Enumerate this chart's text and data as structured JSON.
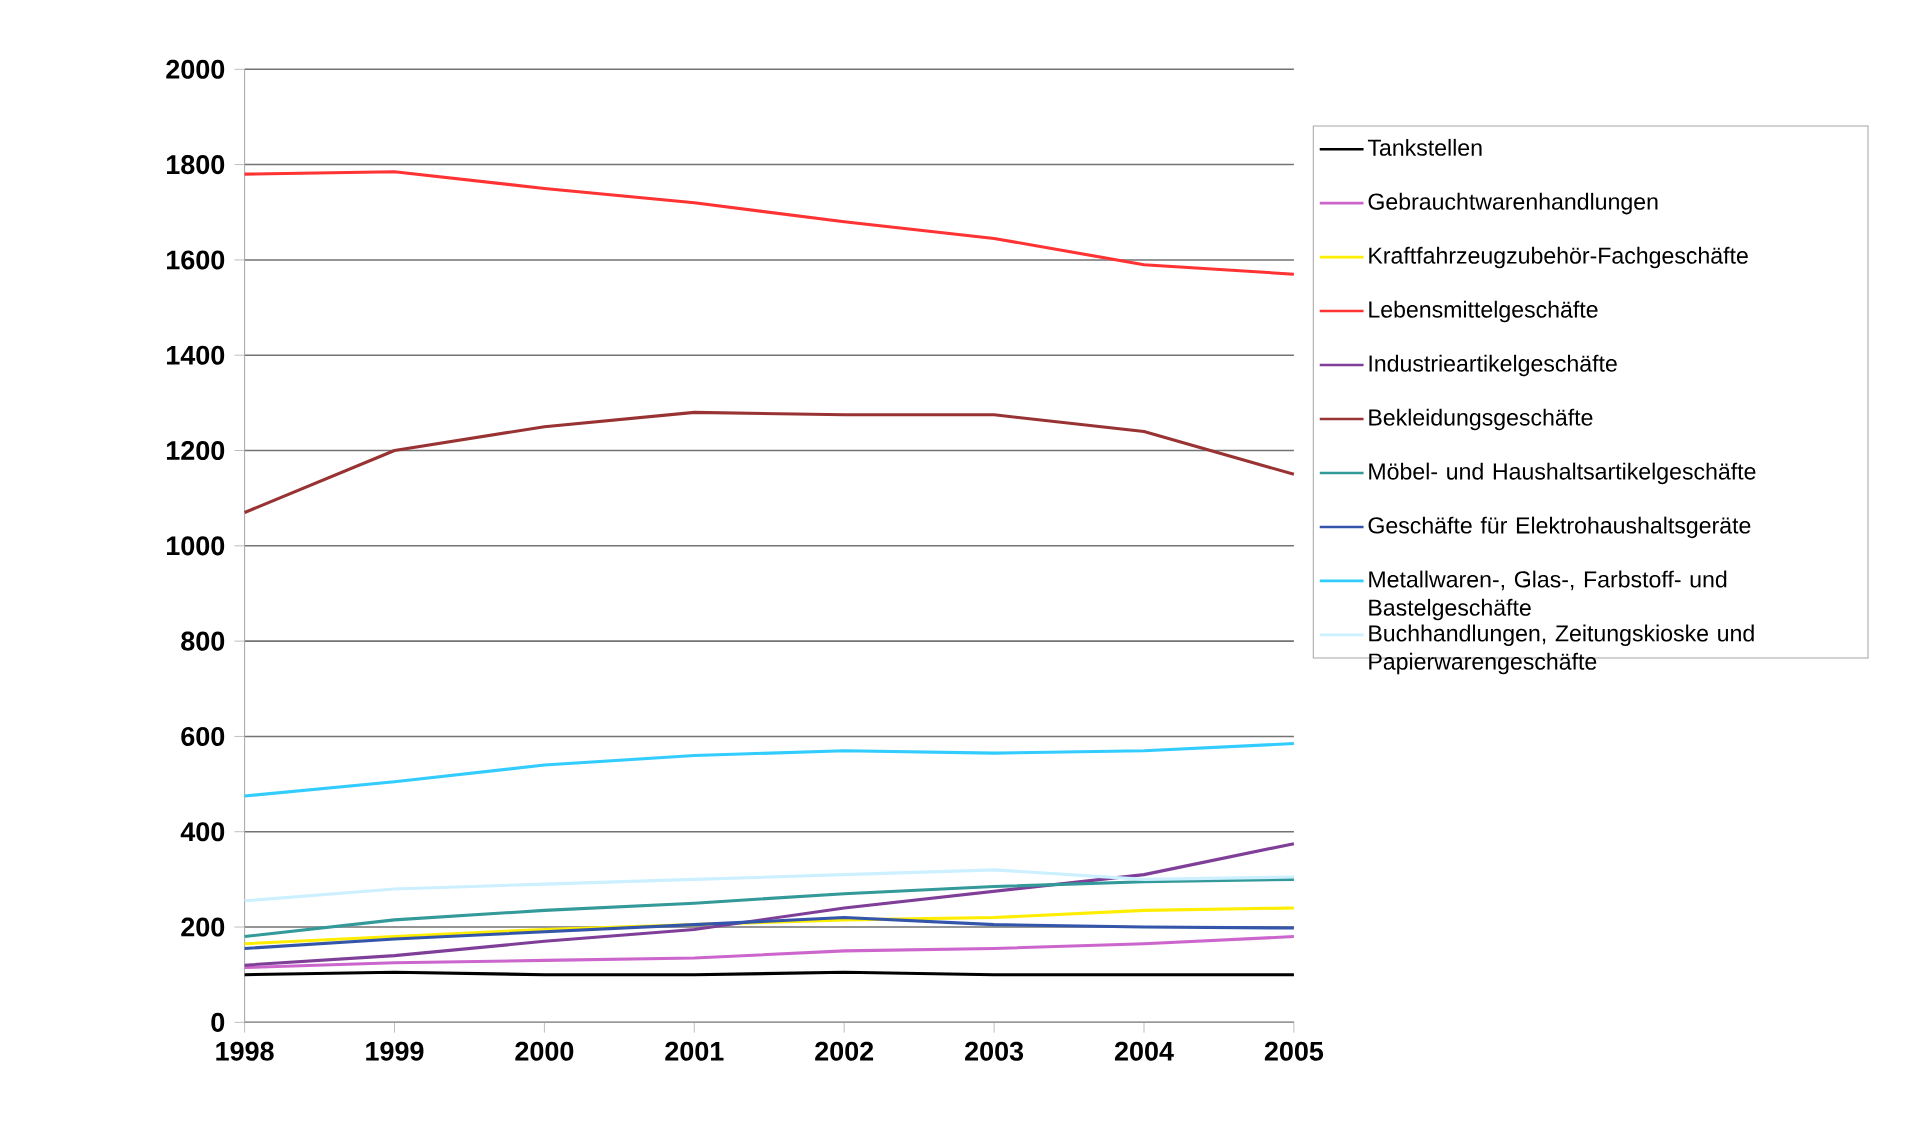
{
  "chart_data": {
    "type": "line",
    "x": [
      1998,
      1999,
      2000,
      2001,
      2002,
      2003,
      2004,
      2005
    ],
    "series": [
      {
        "name": "Tankstellen",
        "color": "#000000",
        "values": [
          100,
          105,
          100,
          100,
          105,
          100,
          100,
          100
        ]
      },
      {
        "name": "Gebrauchtwarenhandlungen",
        "color": "#cc66cc",
        "values": [
          115,
          125,
          130,
          135,
          150,
          155,
          165,
          180
        ]
      },
      {
        "name": "Kraftfahrzeugzubehör-Fachgeschäfte",
        "color": "#ffee00",
        "values": [
          165,
          180,
          195,
          205,
          215,
          220,
          235,
          240
        ]
      },
      {
        "name": "Lebensmittelgeschäfte",
        "color": "#ff3333",
        "values": [
          1780,
          1785,
          1750,
          1720,
          1680,
          1645,
          1590,
          1570
        ]
      },
      {
        "name": "Industrieartikelgeschäfte",
        "color": "#7f3f98",
        "values": [
          120,
          140,
          170,
          195,
          240,
          275,
          310,
          375
        ]
      },
      {
        "name": "Bekleidungsgeschäfte",
        "color": "#993333",
        "values": [
          1070,
          1200,
          1250,
          1280,
          1275,
          1275,
          1240,
          1150
        ]
      },
      {
        "name": "Möbel- und Haushaltsartikelgeschäfte",
        "color": "#339999",
        "values": [
          180,
          215,
          235,
          250,
          270,
          285,
          295,
          300
        ]
      },
      {
        "name": "Geschäfte für Elektrohaushaltsgeräte",
        "color": "#3355aa",
        "values": [
          155,
          175,
          190,
          205,
          220,
          205,
          200,
          198
        ]
      },
      {
        "name": "Metallwaren-, Glas-, Farbstoff- und Bastelgeschäfte",
        "color": "#33ccff",
        "values": [
          475,
          505,
          540,
          560,
          570,
          565,
          570,
          585
        ]
      },
      {
        "name": "Buchhandlungen, Zeitungskioske und Papierwarengeschäfte",
        "color": "#ccf0ff",
        "values": [
          255,
          280,
          290,
          300,
          310,
          320,
          300,
          305
        ]
      }
    ],
    "xlim": [
      1998,
      2005
    ],
    "xticks": [
      1998,
      1999,
      2000,
      2001,
      2002,
      2003,
      2004,
      2005
    ],
    "ylim": [
      0,
      2000
    ],
    "yticks": [
      0,
      200,
      400,
      600,
      800,
      1000,
      1200,
      1400,
      1600,
      1800,
      2000
    ],
    "grid": "y",
    "legend": "right",
    "marker": "none",
    "line_style": "solid"
  }
}
